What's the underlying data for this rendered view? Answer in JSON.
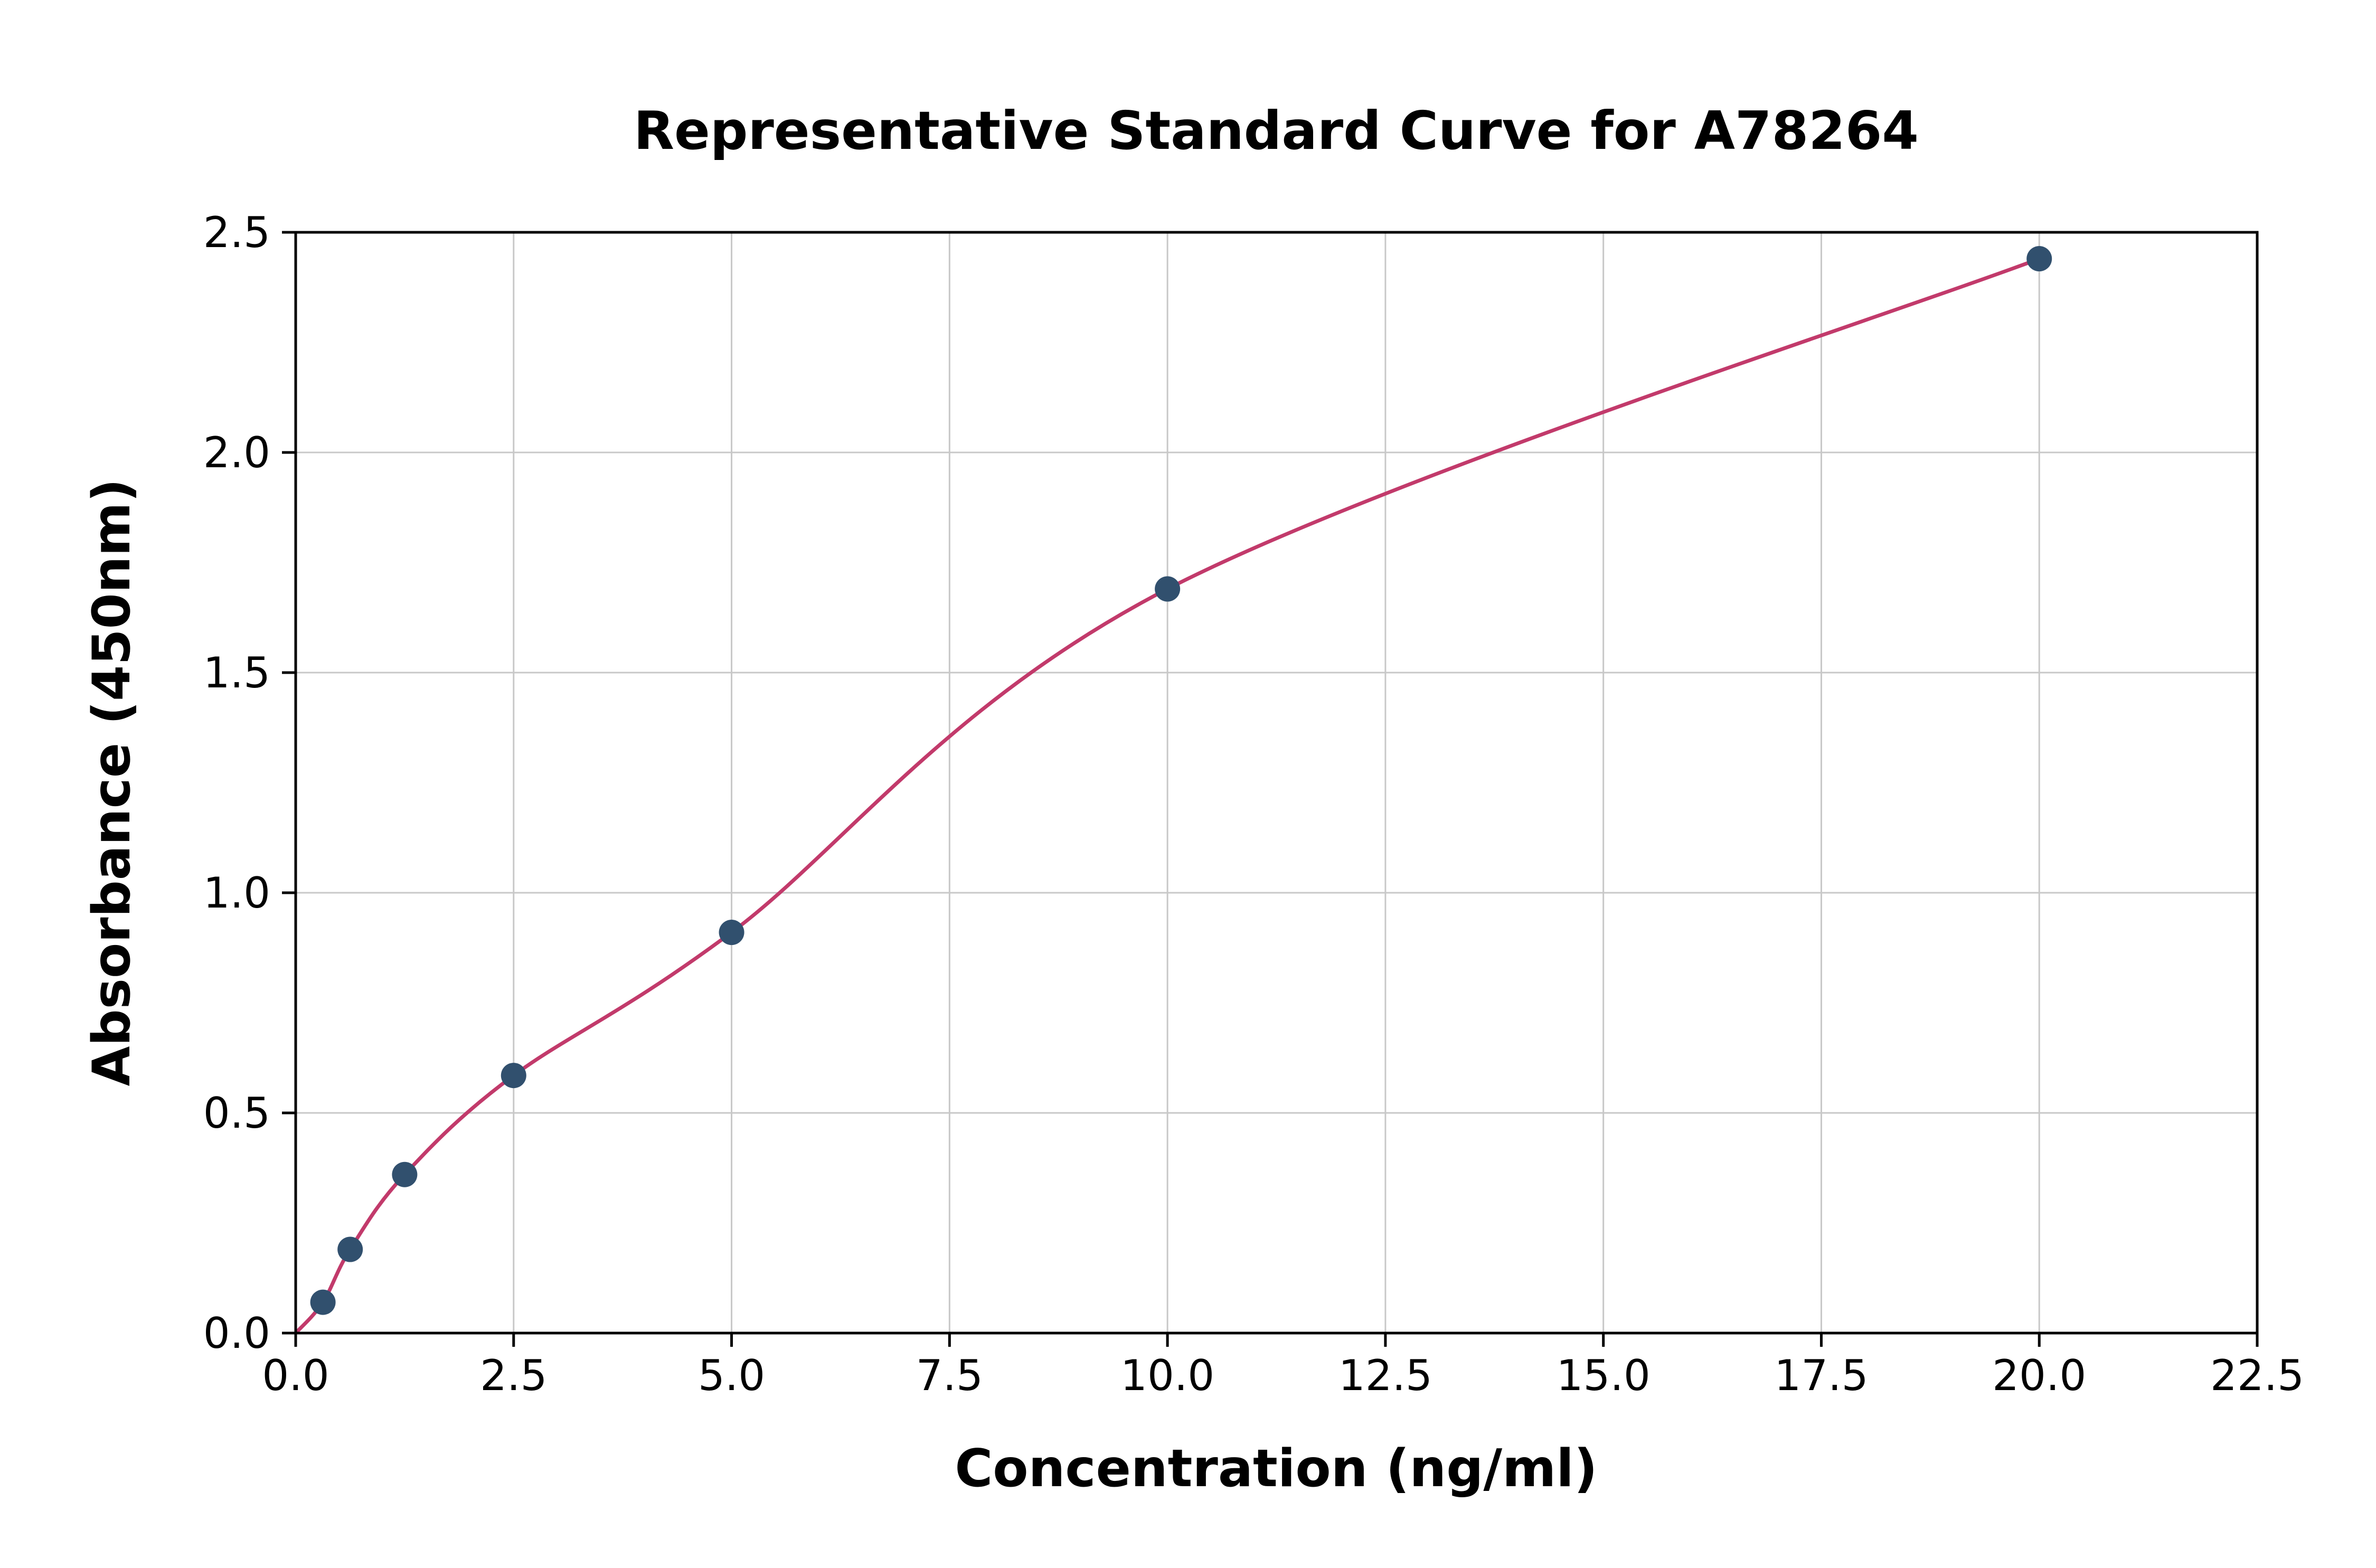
{
  "chart_data": {
    "type": "scatter",
    "title": "Representative Standard Curve for A78264",
    "xlabel": "Concentration (ng/ml)",
    "ylabel": "Absorbance (450nm)",
    "xlim": [
      0,
      22.5
    ],
    "ylim": [
      0,
      2.5
    ],
    "x_ticks": [
      0.0,
      2.5,
      5.0,
      7.5,
      10.0,
      12.5,
      15.0,
      17.5,
      20.0,
      22.5
    ],
    "y_ticks": [
      0.0,
      0.5,
      1.0,
      1.5,
      2.0,
      2.5
    ],
    "grid": true,
    "legend": "none",
    "curve_start": [
      0,
      0
    ],
    "points": {
      "x": [
        0.3125,
        0.625,
        1.25,
        2.5,
        5.0,
        10.0,
        20.0
      ],
      "y": [
        0.07,
        0.19,
        0.36,
        0.585,
        0.91,
        1.69,
        2.44
      ]
    },
    "colors": {
      "curve": "#c23a6b",
      "points": "#31506e",
      "grid": "#c8c8c8",
      "axis": "#000000",
      "background": "#ffffff"
    }
  }
}
